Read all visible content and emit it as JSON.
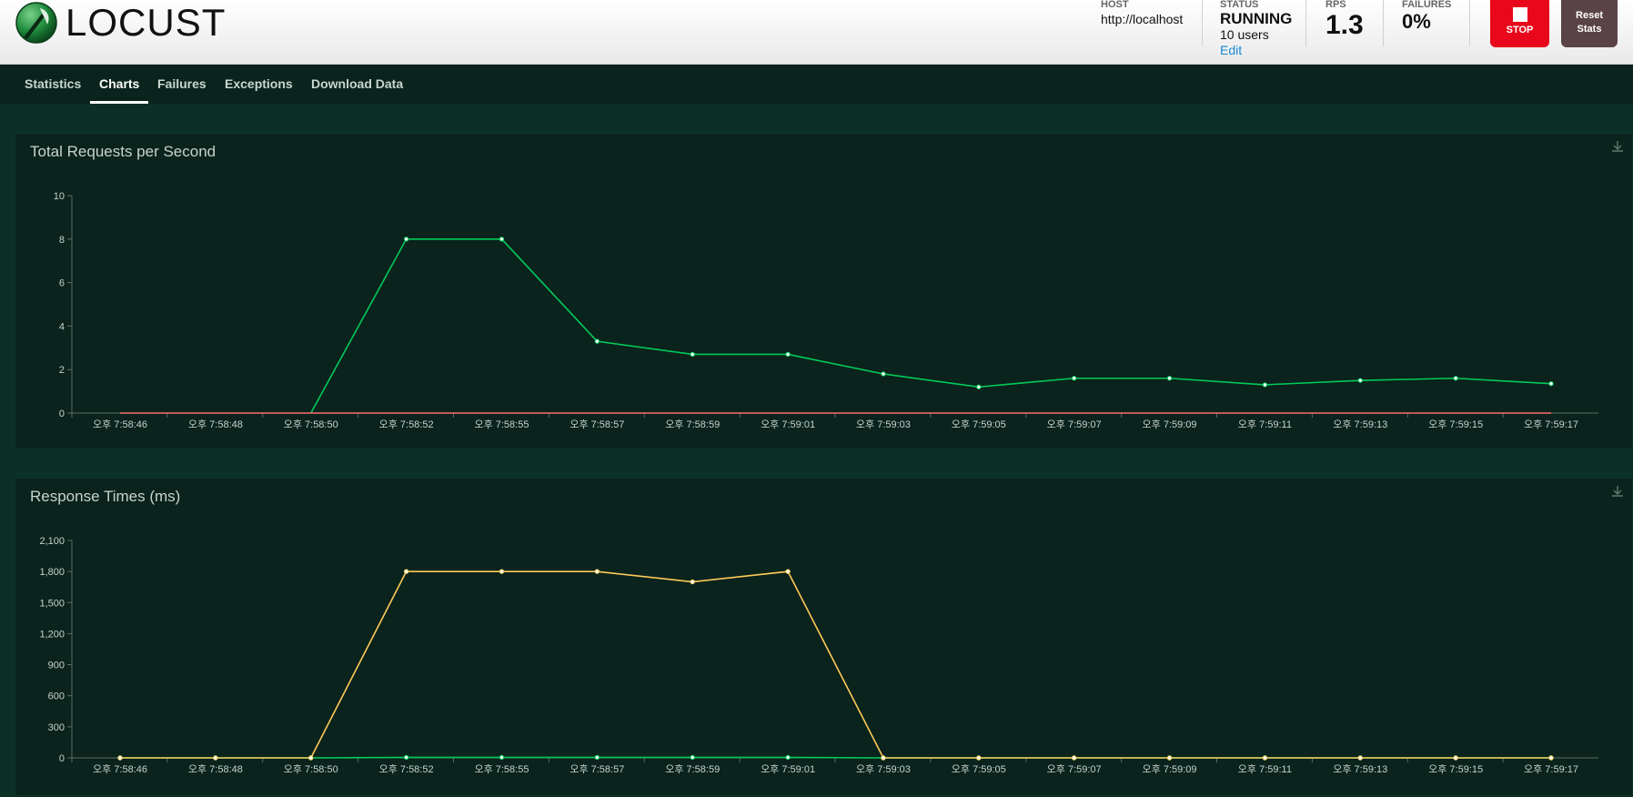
{
  "app": {
    "logo_text": "LOCUST"
  },
  "header": {
    "host": {
      "label": "HOST",
      "value": "http://localhost"
    },
    "status": {
      "label": "STATUS",
      "value": "RUNNING",
      "users": "10 users",
      "edit_label": "Edit"
    },
    "rps": {
      "label": "RPS",
      "value": "1.3"
    },
    "failures": {
      "label": "FAILURES",
      "value": "0%"
    },
    "stop_label": "STOP",
    "reset_label_line1": "Reset",
    "reset_label_line2": "Stats"
  },
  "tabs": [
    {
      "label": "Statistics",
      "active": false
    },
    {
      "label": "Charts",
      "active": true
    },
    {
      "label": "Failures",
      "active": false
    },
    {
      "label": "Exceptions",
      "active": false
    },
    {
      "label": "Download Data",
      "active": false
    }
  ],
  "colors": {
    "rps_line": "#00ca5a",
    "failures_line": "#ff6d6d",
    "response_line": "#ffca5a",
    "median_line": "#00ca5a"
  },
  "chart_data": [
    {
      "type": "line",
      "title": "Total Requests per Second",
      "categories": [
        "오후 7:58:46",
        "오후 7:58:48",
        "오후 7:58:50",
        "오후 7:58:52",
        "오후 7:58:55",
        "오후 7:58:57",
        "오후 7:58:59",
        "오후 7:59:01",
        "오후 7:59:03",
        "오후 7:59:05",
        "오후 7:59:07",
        "오후 7:59:09",
        "오후 7:59:11",
        "오후 7:59:13",
        "오후 7:59:15",
        "오후 7:59:17"
      ],
      "yticks": [
        "0",
        "2",
        "4",
        "6",
        "8",
        "10"
      ],
      "ylim": [
        0,
        10
      ],
      "series": [
        {
          "color": "#00ca5a",
          "values": [
            null,
            null,
            0,
            8,
            8,
            3.3,
            2.7,
            2.7,
            1.8,
            1.2,
            1.6,
            1.6,
            1.3,
            1.5,
            1.6,
            1.35
          ],
          "markers": true
        },
        {
          "color": "#ff6d6d",
          "values": [
            0,
            0,
            0,
            0,
            0,
            0,
            0,
            0,
            0,
            0,
            0,
            0,
            0,
            0,
            0,
            0
          ],
          "markers": false
        }
      ]
    },
    {
      "type": "line",
      "title": "Response Times (ms)",
      "categories": [
        "오후 7:58:46",
        "오후 7:58:48",
        "오후 7:58:50",
        "오후 7:58:52",
        "오후 7:58:55",
        "오후 7:58:57",
        "오후 7:58:59",
        "오후 7:59:01",
        "오후 7:59:03",
        "오후 7:59:05",
        "오후 7:59:07",
        "오후 7:59:09",
        "오후 7:59:11",
        "오후 7:59:13",
        "오후 7:59:15",
        "오후 7:59:17"
      ],
      "yticks": [
        "0",
        "300",
        "600",
        "900",
        "1,200",
        "1,500",
        "1,800",
        "2,100"
      ],
      "ylim": [
        0,
        2100
      ],
      "series": [
        {
          "color": "#00ca5a",
          "values": [
            0,
            0,
            0,
            5,
            5,
            5,
            5,
            5,
            0,
            0,
            0,
            0,
            0,
            0,
            0,
            0
          ],
          "markers": true
        },
        {
          "color": "#ffca5a",
          "values": [
            0,
            0,
            0,
            1800,
            1800,
            1800,
            1700,
            1800,
            0,
            0,
            0,
            0,
            0,
            0,
            0,
            0
          ],
          "markers": true
        }
      ]
    }
  ]
}
